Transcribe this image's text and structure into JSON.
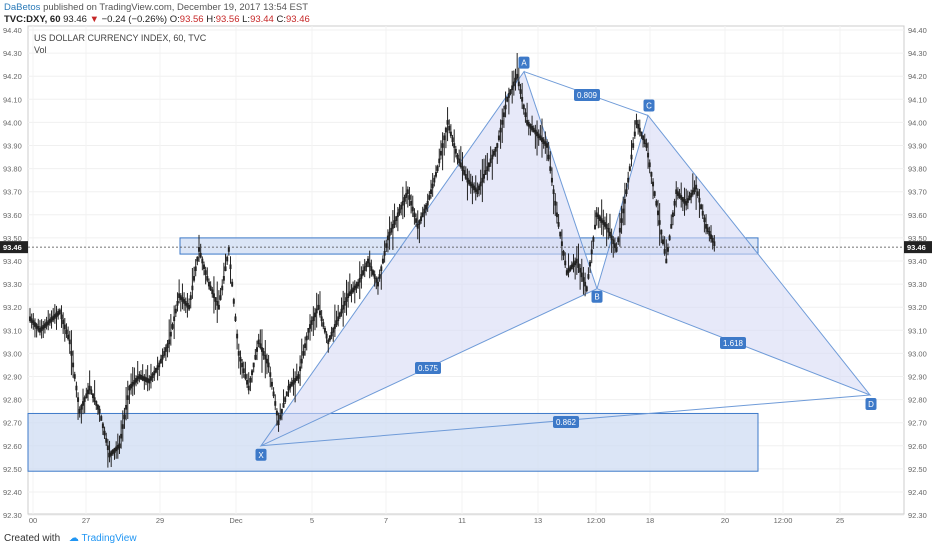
{
  "header": {
    "author": "DaBetos",
    "published_text": "published on TradingView.com, December 19, 2017 13:54 EST",
    "ticker": "TVC:DXY, 60",
    "last": "93.46",
    "change_arrow": "▼",
    "change": "−0.24 (−0.26%)",
    "o_label": "O:",
    "o_value": "93.56",
    "h_label": "H:",
    "h_value": "93.56",
    "l_label": "L:",
    "l_value": "93.44",
    "c_label": "C:",
    "c_value": "93.46"
  },
  "footer": {
    "created_with": "Created with",
    "brand": "TradingView"
  },
  "chart_data": {
    "type": "line",
    "title": "US DOLLAR CURRENCY INDEX, 60, TVC",
    "subtitle": "Vol",
    "ylim": [
      92.4,
      94.4
    ],
    "y_ticks": [
      "94.40",
      "94.30",
      "94.20",
      "94.10",
      "94.00",
      "93.90",
      "93.80",
      "93.70",
      "93.60",
      "93.50",
      "93.40",
      "93.30",
      "93.20",
      "93.10",
      "93.00",
      "92.90",
      "92.80",
      "92.70",
      "92.60",
      "92.50",
      "92.40",
      "92.30"
    ],
    "x_ticks": [
      "00",
      "27",
      "29",
      "Dec",
      "5",
      "7",
      "11",
      "13",
      "12:00",
      "18",
      "20",
      "12:00",
      "25"
    ],
    "current_price": "93.46",
    "colors": {
      "price": "#222222",
      "pattern_fill": "#d7daf5",
      "pattern_stroke": "#6f9bd8",
      "zone_fill": "#cfdcf3",
      "zone_stroke": "#3d79c8",
      "label_bg": "#3d79c8"
    },
    "series": [
      {
        "values": [
          {
            "t": "00",
            "v": 93.15
          },
          {
            "t": "",
            "v": 93.1
          },
          {
            "t": "",
            "v": 93.14
          },
          {
            "t": "",
            "v": 93.18
          },
          {
            "t": "",
            "v": 93.05
          },
          {
            "t": "",
            "v": 92.75
          },
          {
            "t": "27",
            "v": 92.85
          },
          {
            "t": "",
            "v": 92.75
          },
          {
            "t": "",
            "v": 92.56
          },
          {
            "t": "",
            "v": 92.6
          },
          {
            "t": "",
            "v": 92.85
          },
          {
            "t": "",
            "v": 92.9
          },
          {
            "t": "",
            "v": 92.88
          },
          {
            "t": "",
            "v": 92.95
          },
          {
            "t": "",
            "v": 93.05
          },
          {
            "t": "29",
            "v": 93.25
          },
          {
            "t": "",
            "v": 93.2
          },
          {
            "t": "",
            "v": 93.45
          },
          {
            "t": "",
            "v": 93.3
          },
          {
            "t": "",
            "v": 93.2
          },
          {
            "t": "",
            "v": 93.45
          },
          {
            "t": "",
            "v": 93.0
          },
          {
            "t": "",
            "v": 92.85
          },
          {
            "t": "",
            "v": 93.05
          },
          {
            "t": "Dec",
            "v": 92.95
          },
          {
            "t": "",
            "v": 92.7
          },
          {
            "t": "",
            "v": 92.85
          },
          {
            "t": "",
            "v": 92.9
          },
          {
            "t": "",
            "v": 93.1
          },
          {
            "t": "",
            "v": 93.2
          },
          {
            "t": "",
            "v": 93.05
          },
          {
            "t": "5",
            "v": 93.15
          },
          {
            "t": "",
            "v": 93.25
          },
          {
            "t": "",
            "v": 93.3
          },
          {
            "t": "",
            "v": 93.4
          },
          {
            "t": "",
            "v": 93.3
          },
          {
            "t": "",
            "v": 93.5
          },
          {
            "t": "7",
            "v": 93.6
          },
          {
            "t": "",
            "v": 93.7
          },
          {
            "t": "",
            "v": 93.55
          },
          {
            "t": "",
            "v": 93.65
          },
          {
            "t": "",
            "v": 93.8
          },
          {
            "t": "",
            "v": 94.0
          },
          {
            "t": "11",
            "v": 93.85
          },
          {
            "t": "",
            "v": 93.75
          },
          {
            "t": "",
            "v": 93.7
          },
          {
            "t": "",
            "v": 93.8
          },
          {
            "t": "",
            "v": 93.9
          },
          {
            "t": "",
            "v": 94.1
          },
          {
            "t": "13",
            "v": 94.2
          },
          {
            "t": "",
            "v": 94.0
          },
          {
            "t": "",
            "v": 93.95
          },
          {
            "t": "",
            "v": 93.9
          },
          {
            "t": "",
            "v": 93.6
          },
          {
            "t": "",
            "v": 93.35
          },
          {
            "t": "12:00",
            "v": 93.4
          },
          {
            "t": "",
            "v": 93.28
          },
          {
            "t": "",
            "v": 93.6
          },
          {
            "t": "",
            "v": 93.55
          },
          {
            "t": "",
            "v": 93.45
          },
          {
            "t": "18",
            "v": 93.7
          },
          {
            "t": "",
            "v": 94.0
          },
          {
            "t": "",
            "v": 93.9
          },
          {
            "t": "",
            "v": 93.65
          },
          {
            "t": "",
            "v": 93.4
          },
          {
            "t": "",
            "v": 93.7
          },
          {
            "t": "",
            "v": 93.65
          },
          {
            "t": "",
            "v": 93.72
          },
          {
            "t": "",
            "v": 93.55
          },
          {
            "t": "",
            "v": 93.46
          }
        ]
      }
    ],
    "pattern": {
      "points": [
        {
          "label": "X",
          "date": "Dec 1",
          "price": 92.6
        },
        {
          "label": "A",
          "date": "Dec 12",
          "price": 94.22
        },
        {
          "label": "B",
          "date": "Dec 15",
          "price": 93.28
        },
        {
          "label": "C",
          "date": "Dec 18",
          "price": 94.03
        },
        {
          "label": "D",
          "date": "Dec 26",
          "price": 92.82
        }
      ],
      "ratios": [
        {
          "label": "0.809",
          "between": "A-C"
        },
        {
          "label": "0.575",
          "between": "X-B"
        },
        {
          "label": "1.618",
          "between": "B-D"
        },
        {
          "label": "0.862",
          "between": "X-D"
        }
      ]
    },
    "zones": [
      {
        "name": "resistance",
        "from": 93.43,
        "to": 93.5
      },
      {
        "name": "support",
        "from": 92.49,
        "to": 92.74
      }
    ]
  }
}
